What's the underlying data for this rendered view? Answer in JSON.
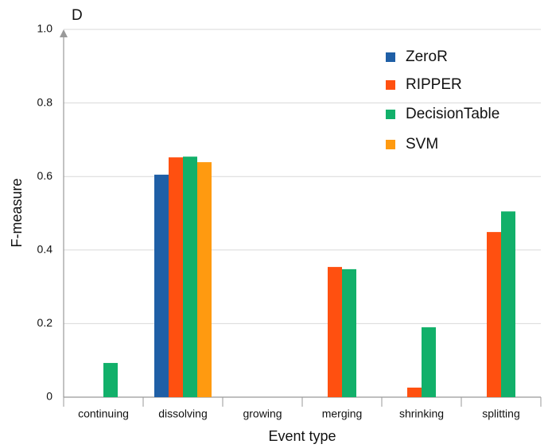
{
  "chart_data": {
    "type": "bar",
    "title": "D",
    "x_label": "Event type",
    "y_label": "F-measure",
    "categories": [
      "continuing",
      "dissolving",
      "growing",
      "merging",
      "shrinking",
      "splitting"
    ],
    "series": [
      {
        "name": "ZeroR",
        "color": "#1f5fa6",
        "values": [
          0,
          0.605,
          0,
          0,
          0,
          0
        ]
      },
      {
        "name": "RIPPER",
        "color": "#ff5010",
        "values": [
          0,
          0.652,
          0,
          0.354,
          0.026,
          0.449
        ]
      },
      {
        "name": "DecisionTable",
        "color": "#12b06a",
        "values": [
          0.093,
          0.654,
          0,
          0.348,
          0.19,
          0.505
        ]
      },
      {
        "name": "SVM",
        "color": "#ff9a10",
        "values": [
          0,
          0.639,
          0,
          0,
          0,
          0
        ]
      }
    ],
    "ylim": [
      0,
      1
    ],
    "yticks": [
      0,
      0.2,
      0.4,
      0.6,
      0.8,
      {
        "value": 1,
        "label": "1.0"
      }
    ],
    "grid": true,
    "legend": "top-right"
  }
}
